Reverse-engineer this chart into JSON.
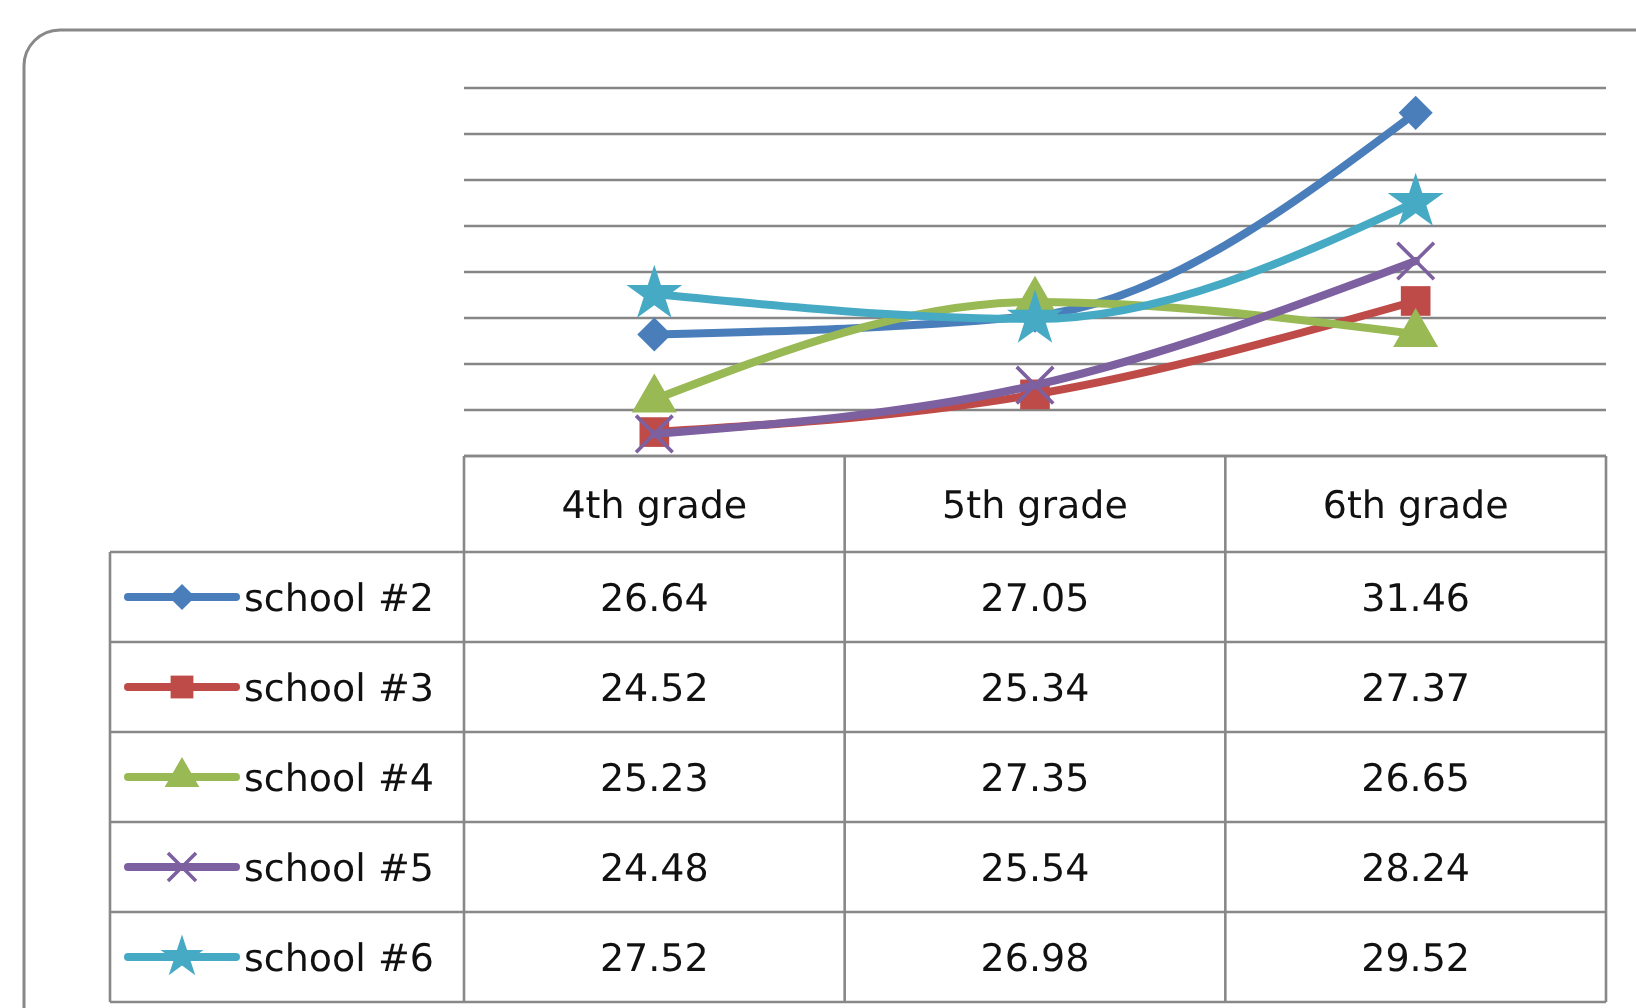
{
  "chart_data": {
    "type": "line",
    "categories": [
      "4th grade",
      "5th grade",
      "6th grade"
    ],
    "series": [
      {
        "name": "school #2",
        "color": "#4a7ebb",
        "marker": "diamond",
        "values": [
          26.64,
          27.05,
          31.46
        ]
      },
      {
        "name": "school #3",
        "color": "#be4b48",
        "marker": "square",
        "values": [
          24.52,
          25.34,
          27.37
        ]
      },
      {
        "name": "school #4",
        "color": "#98b954",
        "marker": "triangle",
        "values": [
          25.23,
          27.35,
          26.65
        ]
      },
      {
        "name": "school #5",
        "color": "#7d60a0",
        "marker": "cross",
        "values": [
          24.48,
          25.54,
          28.24
        ]
      },
      {
        "name": "school #6",
        "color": "#46aac5",
        "marker": "star",
        "values": [
          27.52,
          26.98,
          29.52
        ]
      }
    ],
    "ylim": [
      24,
      32
    ],
    "yticks": [
      {
        "value": 24,
        "label": null
      },
      {
        "value": 25,
        "label": null
      },
      {
        "value": 26,
        "label": null
      },
      {
        "value": 27,
        "label": null
      },
      {
        "value": 28,
        "label": null
      },
      {
        "value": 29,
        "label": null
      },
      {
        "value": 30,
        "label": null
      },
      {
        "value": 31,
        "label": null
      },
      {
        "value": 32,
        "label": null
      }
    ],
    "grid": "y",
    "tick_labels": false,
    "data_labels": true,
    "legend": "bottom left",
    "line_style": "solid"
  }
}
